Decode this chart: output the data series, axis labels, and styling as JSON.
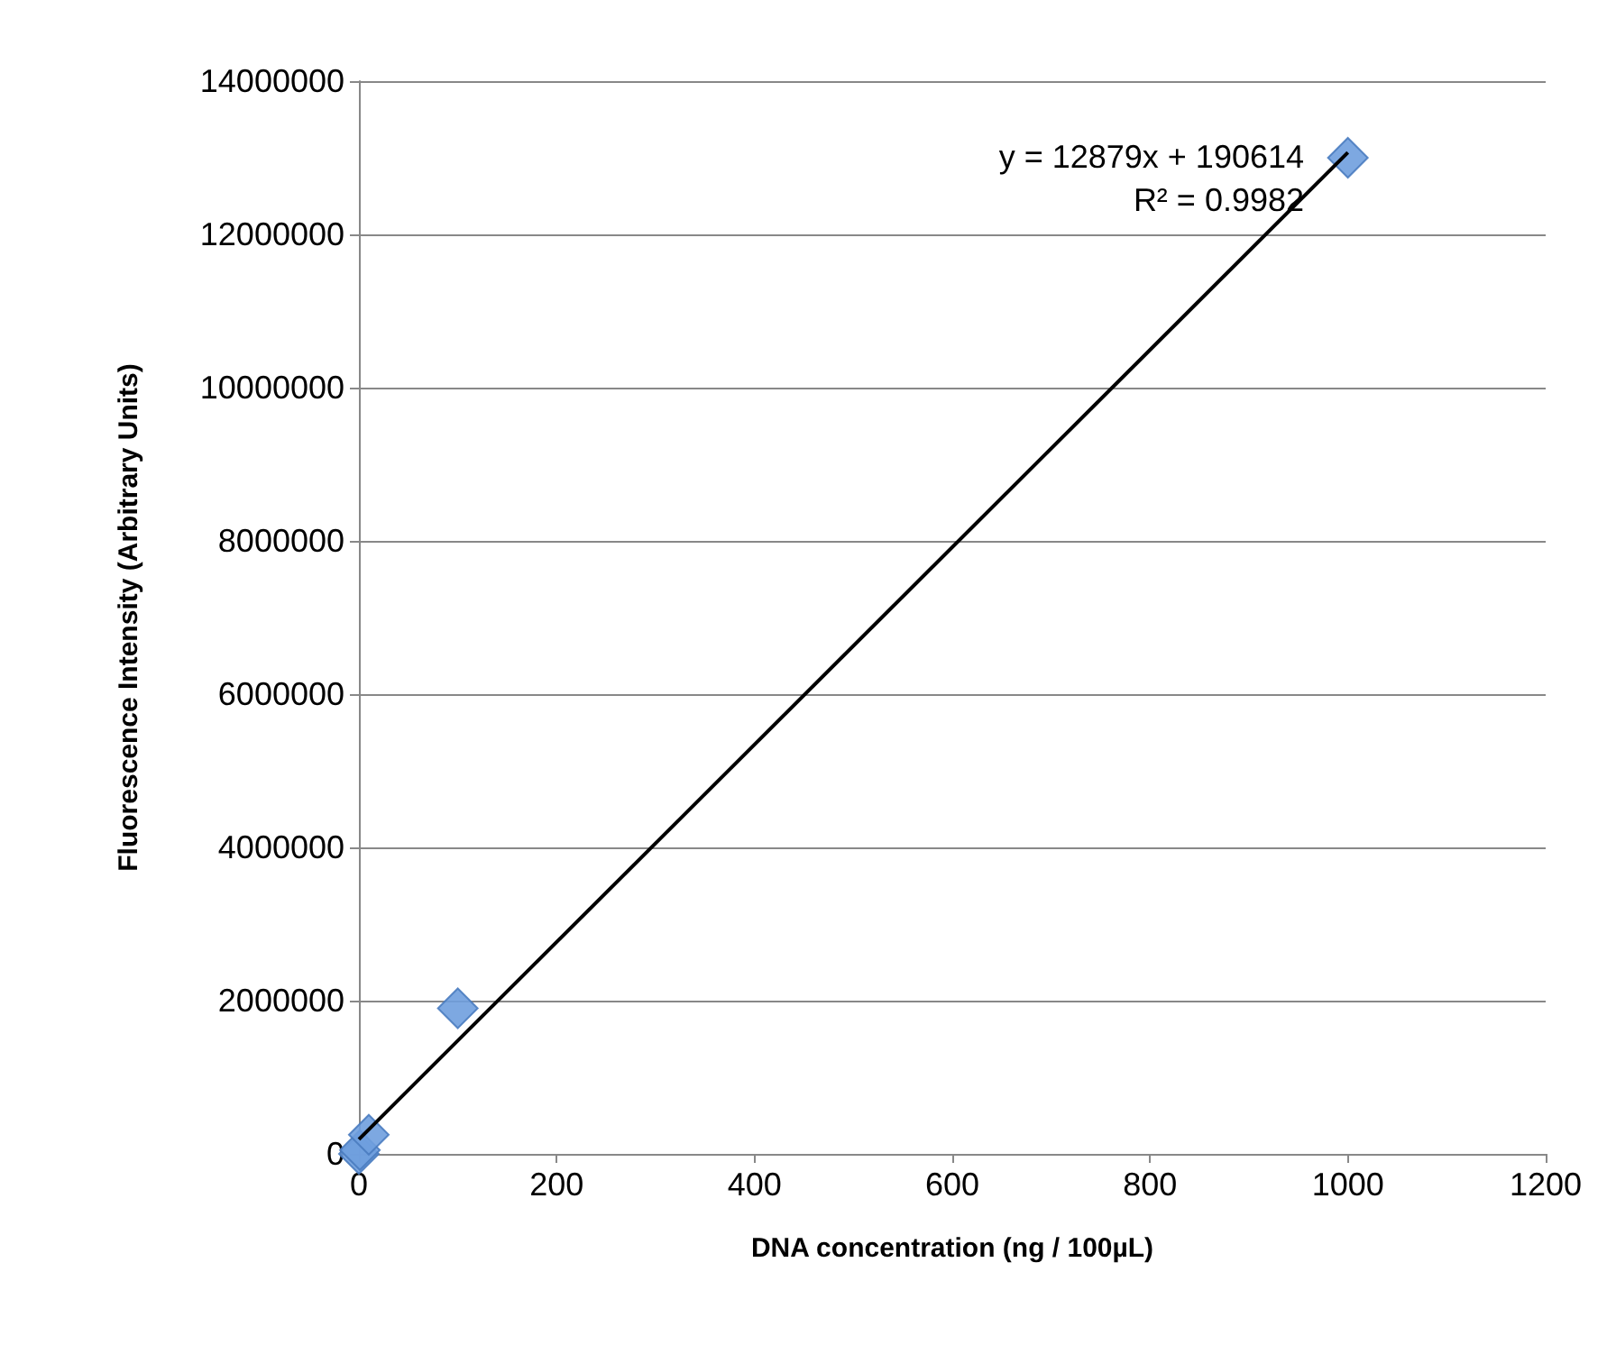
{
  "chart_data": {
    "type": "scatter",
    "xlabel": "DNA concentration (ng / 100µL)",
    "ylabel": "Fluorescence Intensity (Arbitrary Units)",
    "series": [
      {
        "color": "#6f9fde",
        "marker": "diamond",
        "x": [
          0,
          1,
          10,
          100,
          1000
        ],
        "values": [
          0,
          50000,
          250000,
          1900000,
          13000000
        ]
      },
      {
        "type": "line",
        "color": "#000000",
        "marker": "none",
        "line_style": "solid",
        "x": [
          0,
          1000
        ],
        "values": [
          190000,
          13070000
        ]
      }
    ],
    "annotations": [
      "y = 12879x + 190614",
      "R² = 0.9982"
    ],
    "xlim": [
      0,
      1200
    ],
    "xticks": [
      0,
      200,
      400,
      600,
      800,
      1000,
      1200
    ],
    "ylim": [
      0,
      14000000
    ],
    "yticks": [
      0,
      2000000,
      4000000,
      6000000,
      8000000,
      10000000,
      12000000,
      14000000
    ],
    "grid": "y"
  }
}
